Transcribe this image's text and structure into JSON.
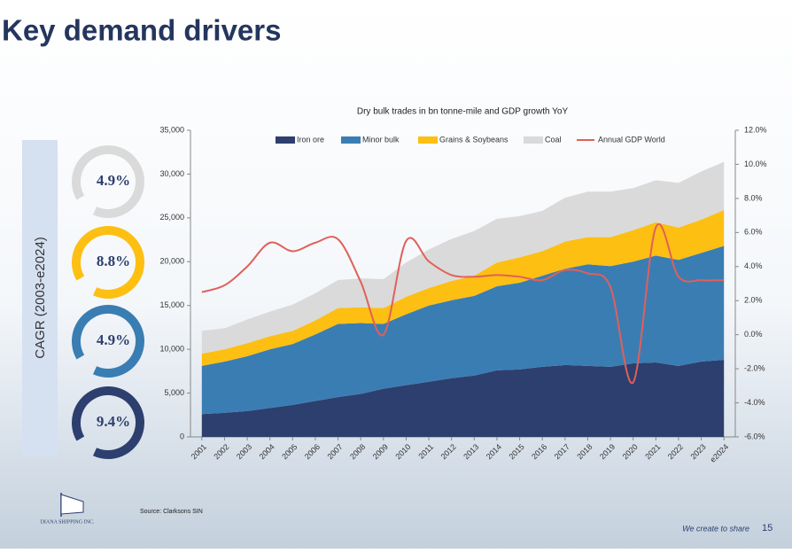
{
  "slide": {
    "title": "Key demand drivers",
    "cagr_label": "CAGR (2003-e2024)",
    "cagr": [
      "4.9%",
      "8.8%",
      "4.9%",
      "9.4%"
    ],
    "source": "Source: Clarksons SIN",
    "logo": "DIANA SHIPPING INC.",
    "tagline": "We create to share",
    "page": "15"
  },
  "chart_data": {
    "type": "stacked-area-line",
    "title": "Dry bulk trades in bn tonne-mile and GDP growth YoY",
    "categories": [
      "2001",
      "2002",
      "2003",
      "2004",
      "2005",
      "2006",
      "2007",
      "2008",
      "2009",
      "2010",
      "2011",
      "2012",
      "2013",
      "2014",
      "2015",
      "2016",
      "2017",
      "2018",
      "2019",
      "2020",
      "2021",
      "2022",
      "2023",
      "e2024"
    ],
    "series": [
      {
        "name": "Iron ore",
        "color": "#2d3f6e",
        "values": [
          2600,
          2750,
          2950,
          3300,
          3650,
          4100,
          4550,
          4900,
          5500,
          5900,
          6300,
          6700,
          7000,
          7600,
          7700,
          8000,
          8200,
          8100,
          8000,
          8400,
          8500,
          8100,
          8600,
          8800
        ]
      },
      {
        "name": "Minor bulk",
        "color": "#3a7db3",
        "values": [
          5500,
          5850,
          6250,
          6700,
          6950,
          7600,
          8350,
          8100,
          7400,
          8100,
          8700,
          8900,
          9100,
          9600,
          9900,
          10400,
          11000,
          11600,
          11500,
          11600,
          12200,
          12100,
          12400,
          13000
        ]
      },
      {
        "name": "Grains & Soybeans",
        "color": "#fdbf12",
        "values": [
          1400,
          1400,
          1500,
          1500,
          1500,
          1600,
          1800,
          1800,
          1800,
          2000,
          2000,
          2200,
          2300,
          2700,
          2900,
          2800,
          3100,
          3100,
          3300,
          3600,
          3800,
          3700,
          3800,
          4100
        ]
      },
      {
        "name": "Coal",
        "color": "#dadada",
        "values": [
          2600,
          2400,
          2700,
          2800,
          3000,
          3100,
          3200,
          3300,
          3300,
          3900,
          4400,
          4800,
          5100,
          5000,
          4700,
          4600,
          5000,
          5200,
          5200,
          4800,
          4800,
          5100,
          5500,
          5500
        ]
      },
      {
        "name": "Annual GDP World",
        "color": "#e0605a",
        "axis": "y2",
        "values": [
          2.5,
          2.9,
          4.0,
          5.4,
          4.9,
          5.4,
          5.6,
          3.1,
          0.0,
          5.5,
          4.3,
          3.5,
          3.4,
          3.5,
          3.4,
          3.2,
          3.8,
          3.6,
          2.8,
          -2.8,
          6.3,
          3.4,
          3.2,
          3.2
        ]
      }
    ],
    "ylim": [
      0,
      35000
    ],
    "yticks": [
      0,
      {
        "value": 5000,
        "label": "5,000"
      },
      {
        "value": 10000,
        "label": "10,000"
      },
      {
        "value": 15000,
        "label": "15,000"
      },
      {
        "value": 20000,
        "label": "20,000"
      },
      {
        "value": 25000,
        "label": "25,000"
      },
      {
        "value": 30000,
        "label": "30,000"
      },
      {
        "value": 35000,
        "label": "35,000"
      }
    ],
    "y2lim": [
      -6,
      12
    ],
    "y2ticks": [
      {
        "value": -6,
        "label": "-6.0%"
      },
      {
        "value": -4,
        "label": "-4.0%"
      },
      {
        "value": -2,
        "label": "-2.0%"
      },
      {
        "value": 0,
        "label": "0.0%"
      },
      {
        "value": 2,
        "label": "2.0%"
      },
      {
        "value": 4,
        "label": "4.0%"
      },
      {
        "value": 6,
        "label": "6.0%"
      },
      {
        "value": 8,
        "label": "8.0%"
      },
      {
        "value": 10,
        "label": "10.0%"
      },
      {
        "value": 12,
        "label": "12.0%"
      }
    ],
    "legend": "top"
  }
}
